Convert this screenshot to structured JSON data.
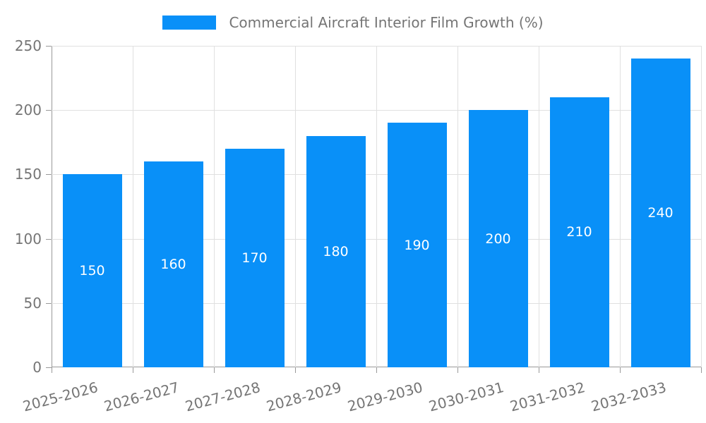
{
  "legend": {
    "label": "Commercial Aircraft Interior Film Growth (%)",
    "swatch_color": "#0990f8"
  },
  "chart_data": {
    "type": "bar",
    "title": "Commercial Aircraft Interior Film Growth (%)",
    "categories": [
      "2025-2026",
      "2026-2027",
      "2027-2028",
      "2028-2029",
      "2029-2030",
      "2030-2031",
      "2031-2032",
      "2032-2033"
    ],
    "values": [
      150,
      160,
      170,
      180,
      190,
      200,
      210,
      240
    ],
    "value_labels": [
      "150",
      "160",
      "170",
      "180",
      "190",
      "200",
      "210",
      "240"
    ],
    "ytick_labels": [
      "0",
      "50",
      "100",
      "150",
      "200",
      "250"
    ],
    "yticks": [
      0,
      50,
      100,
      150,
      200,
      250
    ],
    "ylim": [
      0,
      250
    ],
    "xlabel": "",
    "ylabel": "",
    "grid": true,
    "legend_position": "top-center",
    "bar_color": "#0990f8",
    "bar_label_color": "#ffffff",
    "axis_color": "#999999",
    "grid_color": "#e0e0e0",
    "tick_label_color": "#757575"
  }
}
